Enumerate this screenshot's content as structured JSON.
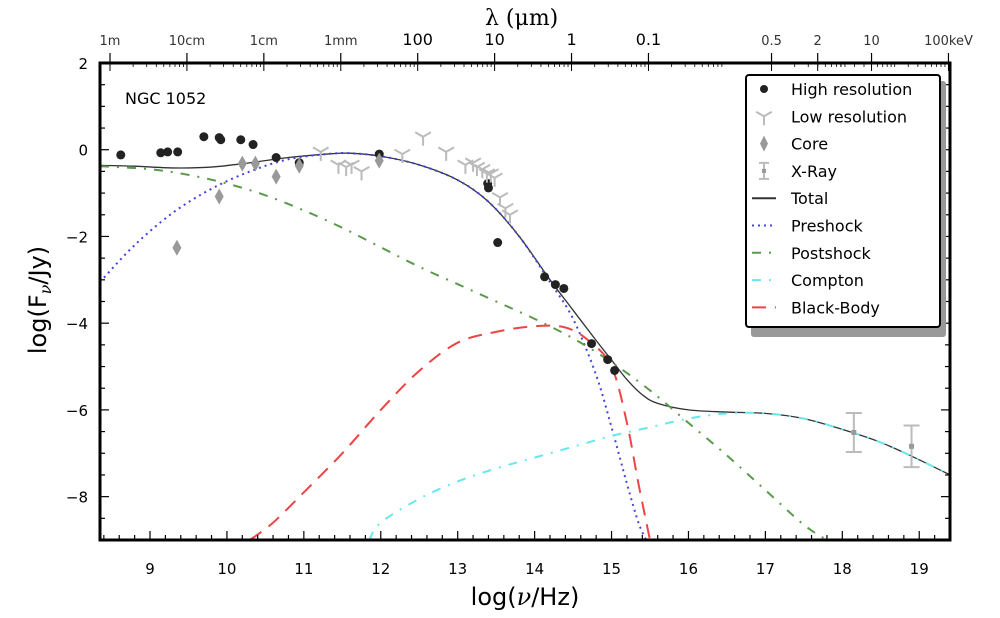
{
  "chart_data": {
    "type": "scatter",
    "annotation": "NGC 1052",
    "xlabel": "log(ν/Hz)",
    "ylabel": "log(Fν/Jy)",
    "ylabel_parts": {
      "pre": "log(F",
      "sub": "ν",
      "post": "/Jy)"
    },
    "xlabel_parts": {
      "pre": "log(",
      "nu": "ν",
      "post": "/Hz)"
    },
    "top_axis_label": "λ (μm)",
    "xlim": [
      8.35,
      19.4
    ],
    "ylim": [
      -9,
      2
    ],
    "x_ticks": [
      9,
      10,
      11,
      12,
      13,
      14,
      15,
      16,
      17,
      18,
      19
    ],
    "y_ticks": [
      2,
      0,
      -2,
      -4,
      -6,
      -8
    ],
    "y_tick_labels": [
      "2",
      "0",
      "−2",
      "−4",
      "−6",
      "−8"
    ],
    "top_ticks": [
      {
        "label": "1m",
        "x": 8.48,
        "style": "small"
      },
      {
        "label": "10cm",
        "x": 9.48,
        "style": "small"
      },
      {
        "label": "1cm",
        "x": 10.48,
        "style": "small"
      },
      {
        "label": "1mm",
        "x": 11.48,
        "style": "small"
      },
      {
        "label": "100",
        "x": 12.48,
        "style": "big"
      },
      {
        "label": "10",
        "x": 13.48,
        "style": "big"
      },
      {
        "label": "1",
        "x": 14.48,
        "style": "big"
      },
      {
        "label": "0.1",
        "x": 15.48,
        "style": "big"
      },
      {
        "label": "0.5",
        "x": 17.08,
        "style": "small"
      },
      {
        "label": "2",
        "x": 17.68,
        "style": "small"
      },
      {
        "label": "10",
        "x": 18.38,
        "style": "small"
      },
      {
        "label": "100keV",
        "x": 19.38,
        "style": "small"
      }
    ],
    "legend": {
      "position": "top-right",
      "entries": [
        {
          "label": "High resolution",
          "marker": "circle",
          "color": "#222222"
        },
        {
          "label": "Low resolution",
          "marker": "tri-down",
          "color": "#bbbbbb"
        },
        {
          "label": "Core",
          "marker": "diamond",
          "color": "#999999"
        },
        {
          "label": "X-Ray",
          "marker": "errorbar",
          "color": "#bbbbbb"
        },
        {
          "label": "Total",
          "line": "solid",
          "color": "#333333"
        },
        {
          "label": "Preshock",
          "line": "dotted",
          "color": "#4444dd"
        },
        {
          "label": "Postshock",
          "line": "dashdot",
          "color": "#5a9a4a"
        },
        {
          "label": "Compton",
          "line": "dashdot",
          "color": "#66e8ee"
        },
        {
          "label": "Black-Body",
          "line": "dashed",
          "color": "#ee4444"
        }
      ]
    },
    "series": [
      {
        "name": "High resolution",
        "kind": "points",
        "color": "#222222",
        "x": [
          8.62,
          9.14,
          9.23,
          9.36,
          9.7,
          9.9,
          9.92,
          10.18,
          10.34,
          10.64,
          10.94,
          11.98,
          13.39,
          13.4,
          13.52,
          14.13,
          14.27,
          14.38,
          14.74,
          14.95,
          15.04
        ],
        "y": [
          -0.12,
          -0.07,
          -0.05,
          -0.05,
          0.3,
          0.28,
          0.23,
          0.23,
          0.12,
          -0.18,
          -0.3,
          -0.1,
          -0.78,
          -0.88,
          -2.14,
          -2.93,
          -3.11,
          -3.2,
          -4.47,
          -4.84,
          -5.09
        ]
      },
      {
        "name": "Low resolution",
        "kind": "points",
        "color": "#bbbbbb",
        "x": [
          11.22,
          11.45,
          11.55,
          11.62,
          11.75,
          12.28,
          12.55,
          12.85,
          13.1,
          13.2,
          13.25,
          13.32,
          13.38,
          13.43,
          13.48,
          13.55,
          13.62,
          13.68
        ],
        "y": [
          -0.05,
          -0.35,
          -0.4,
          -0.35,
          -0.5,
          -0.1,
          0.3,
          -0.05,
          -0.35,
          -0.3,
          -0.4,
          -0.45,
          -0.55,
          -0.55,
          -0.65,
          -1.1,
          -1.35,
          -1.5
        ]
      },
      {
        "name": "Core",
        "kind": "points",
        "color": "#999999",
        "x": [
          9.35,
          9.9,
          10.2,
          10.37,
          10.64,
          10.94,
          11.98
        ],
        "y": [
          -2.26,
          -1.08,
          -0.32,
          -0.32,
          -0.62,
          -0.37,
          -0.25
        ]
      },
      {
        "name": "X-Ray",
        "kind": "errorbar",
        "color": "#bbbbbb",
        "x": [
          18.15,
          18.9
        ],
        "y": [
          -6.52,
          -6.84
        ],
        "yerr": [
          0.45,
          0.48
        ]
      },
      {
        "name": "Total",
        "kind": "line",
        "color": "#333333",
        "x": [
          8.35,
          8.8,
          9.3,
          9.8,
          10.3,
          10.8,
          11.3,
          11.6,
          12.0,
          12.5,
          13.0,
          13.4,
          13.8,
          14.2,
          14.5,
          14.8,
          15.0,
          15.2,
          15.4,
          15.6,
          16.0,
          16.5,
          17.0,
          17.5,
          18.0,
          18.5,
          19.0,
          19.4
        ],
        "y": [
          -0.36,
          -0.38,
          -0.42,
          -0.4,
          -0.3,
          -0.18,
          -0.1,
          -0.08,
          -0.15,
          -0.35,
          -0.7,
          -1.2,
          -2.0,
          -3.0,
          -3.7,
          -4.4,
          -4.85,
          -5.3,
          -5.65,
          -5.85,
          -6.0,
          -6.05,
          -6.08,
          -6.2,
          -6.45,
          -6.75,
          -7.15,
          -7.5
        ]
      },
      {
        "name": "Preshock",
        "kind": "line",
        "color": "#4444dd",
        "x": [
          8.35,
          8.8,
          9.3,
          9.8,
          10.3,
          10.8,
          11.3,
          11.6,
          12.0,
          12.5,
          13.0,
          13.4,
          13.8,
          14.2,
          14.5,
          14.8,
          15.0,
          15.2,
          15.35,
          15.45
        ],
        "y": [
          -3.05,
          -2.2,
          -1.45,
          -0.9,
          -0.5,
          -0.22,
          -0.1,
          -0.08,
          -0.15,
          -0.35,
          -0.7,
          -1.2,
          -2.0,
          -3.05,
          -3.9,
          -5.2,
          -6.4,
          -7.7,
          -8.6,
          -9.0
        ]
      },
      {
        "name": "Postshock",
        "kind": "line",
        "color": "#5a9a4a",
        "x": [
          8.35,
          9.0,
          9.5,
          10.0,
          10.5,
          11.0,
          11.5,
          12.0,
          12.5,
          13.0,
          13.5,
          14.0,
          14.5,
          15.0,
          15.5,
          16.0,
          16.5,
          17.0,
          17.5,
          17.8
        ],
        "y": [
          -0.38,
          -0.45,
          -0.58,
          -0.78,
          -1.05,
          -1.4,
          -1.8,
          -2.25,
          -2.7,
          -3.1,
          -3.5,
          -3.9,
          -4.35,
          -4.9,
          -5.55,
          -6.3,
          -7.05,
          -7.85,
          -8.65,
          -9.0
        ]
      },
      {
        "name": "Compton",
        "kind": "line",
        "color": "#66e8ee",
        "x": [
          11.85,
          12.0,
          12.5,
          13.0,
          13.5,
          14.0,
          14.5,
          15.0,
          15.5,
          16.0,
          16.5,
          17.0,
          17.5,
          18.0,
          18.5,
          19.0,
          19.4
        ],
        "y": [
          -9.0,
          -8.6,
          -8.05,
          -7.65,
          -7.35,
          -7.1,
          -6.85,
          -6.6,
          -6.4,
          -6.2,
          -6.08,
          -6.08,
          -6.2,
          -6.45,
          -6.75,
          -7.15,
          -7.5
        ]
      },
      {
        "name": "Black-Body",
        "kind": "line",
        "color": "#ee4444",
        "x": [
          10.3,
          10.6,
          11.0,
          11.5,
          12.0,
          12.5,
          13.0,
          13.5,
          14.0,
          14.4,
          14.7,
          15.0,
          15.2,
          15.35,
          15.5
        ],
        "y": [
          -9.0,
          -8.6,
          -7.9,
          -7.0,
          -6.0,
          -5.1,
          -4.45,
          -4.2,
          -4.07,
          -4.1,
          -4.4,
          -5.0,
          -6.3,
          -7.7,
          -9.0
        ]
      }
    ]
  }
}
